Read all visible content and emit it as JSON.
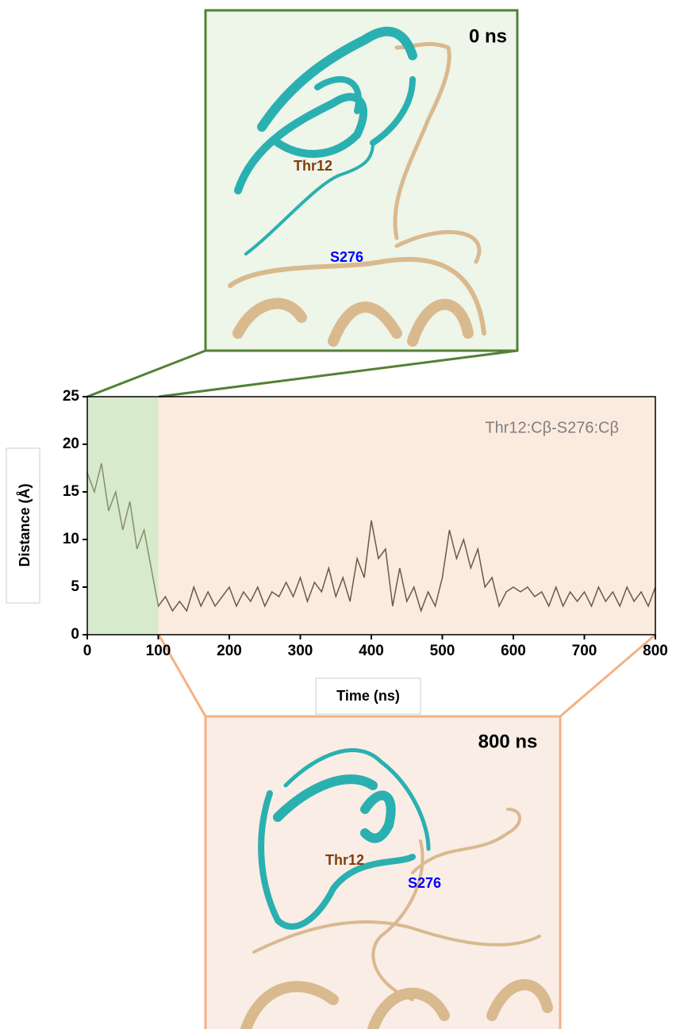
{
  "chart_data": {
    "type": "line",
    "annotation": "Thr12:Cβ-S276:Cβ",
    "xlabel": "Time (ns)",
    "ylabel": "Distance (Å)",
    "xlim": [
      0,
      800
    ],
    "ylim": [
      0,
      25
    ],
    "xticks": [
      0,
      100,
      200,
      300,
      400,
      500,
      600,
      700,
      800
    ],
    "yticks": [
      0,
      5,
      10,
      15,
      20,
      25
    ],
    "regions": [
      {
        "xlim": [
          0,
          100
        ],
        "color": "#a9d18e"
      },
      {
        "xlim": [
          100,
          800
        ],
        "color": "#f8dcc8"
      }
    ],
    "x": [
      0,
      10,
      20,
      30,
      40,
      50,
      60,
      70,
      80,
      90,
      100,
      110,
      120,
      130,
      140,
      150,
      160,
      170,
      180,
      190,
      200,
      210,
      220,
      230,
      240,
      250,
      260,
      270,
      280,
      290,
      300,
      310,
      320,
      330,
      340,
      350,
      360,
      370,
      380,
      390,
      400,
      410,
      420,
      430,
      440,
      450,
      460,
      470,
      480,
      490,
      500,
      510,
      520,
      530,
      540,
      550,
      560,
      570,
      580,
      590,
      600,
      610,
      620,
      630,
      640,
      650,
      660,
      670,
      680,
      690,
      700,
      710,
      720,
      730,
      740,
      750,
      760,
      770,
      780,
      790,
      800
    ],
    "series": [
      {
        "name": "Thr12:Cβ-S276:Cβ",
        "color": "#6b5847",
        "values": [
          17,
          15,
          18,
          13,
          15,
          11,
          14,
          9,
          11,
          7,
          3,
          4,
          2.5,
          3.5,
          2.5,
          5,
          3,
          4.5,
          3,
          4,
          5,
          3,
          4.5,
          3.5,
          5,
          3,
          4.5,
          4,
          5.5,
          4,
          6,
          3.5,
          5.5,
          4.5,
          7,
          4,
          6,
          3.5,
          8,
          6,
          12,
          8,
          9,
          3,
          7,
          3.5,
          5,
          2.5,
          4.5,
          3,
          6,
          11,
          8,
          10,
          7,
          9,
          5,
          6,
          3,
          4.5,
          5,
          4.5,
          5,
          4,
          4.5,
          3,
          5,
          3,
          4.5,
          3.5,
          4.5,
          3,
          5,
          3.5,
          4.5,
          3,
          5,
          3.5,
          4.5,
          3,
          5
        ]
      }
    ]
  },
  "insets": [
    {
      "time": "0 ns",
      "residue": "Thr12",
      "site": "S276"
    },
    {
      "time": "800 ns",
      "residue": "Thr12",
      "site": "S276"
    }
  ]
}
